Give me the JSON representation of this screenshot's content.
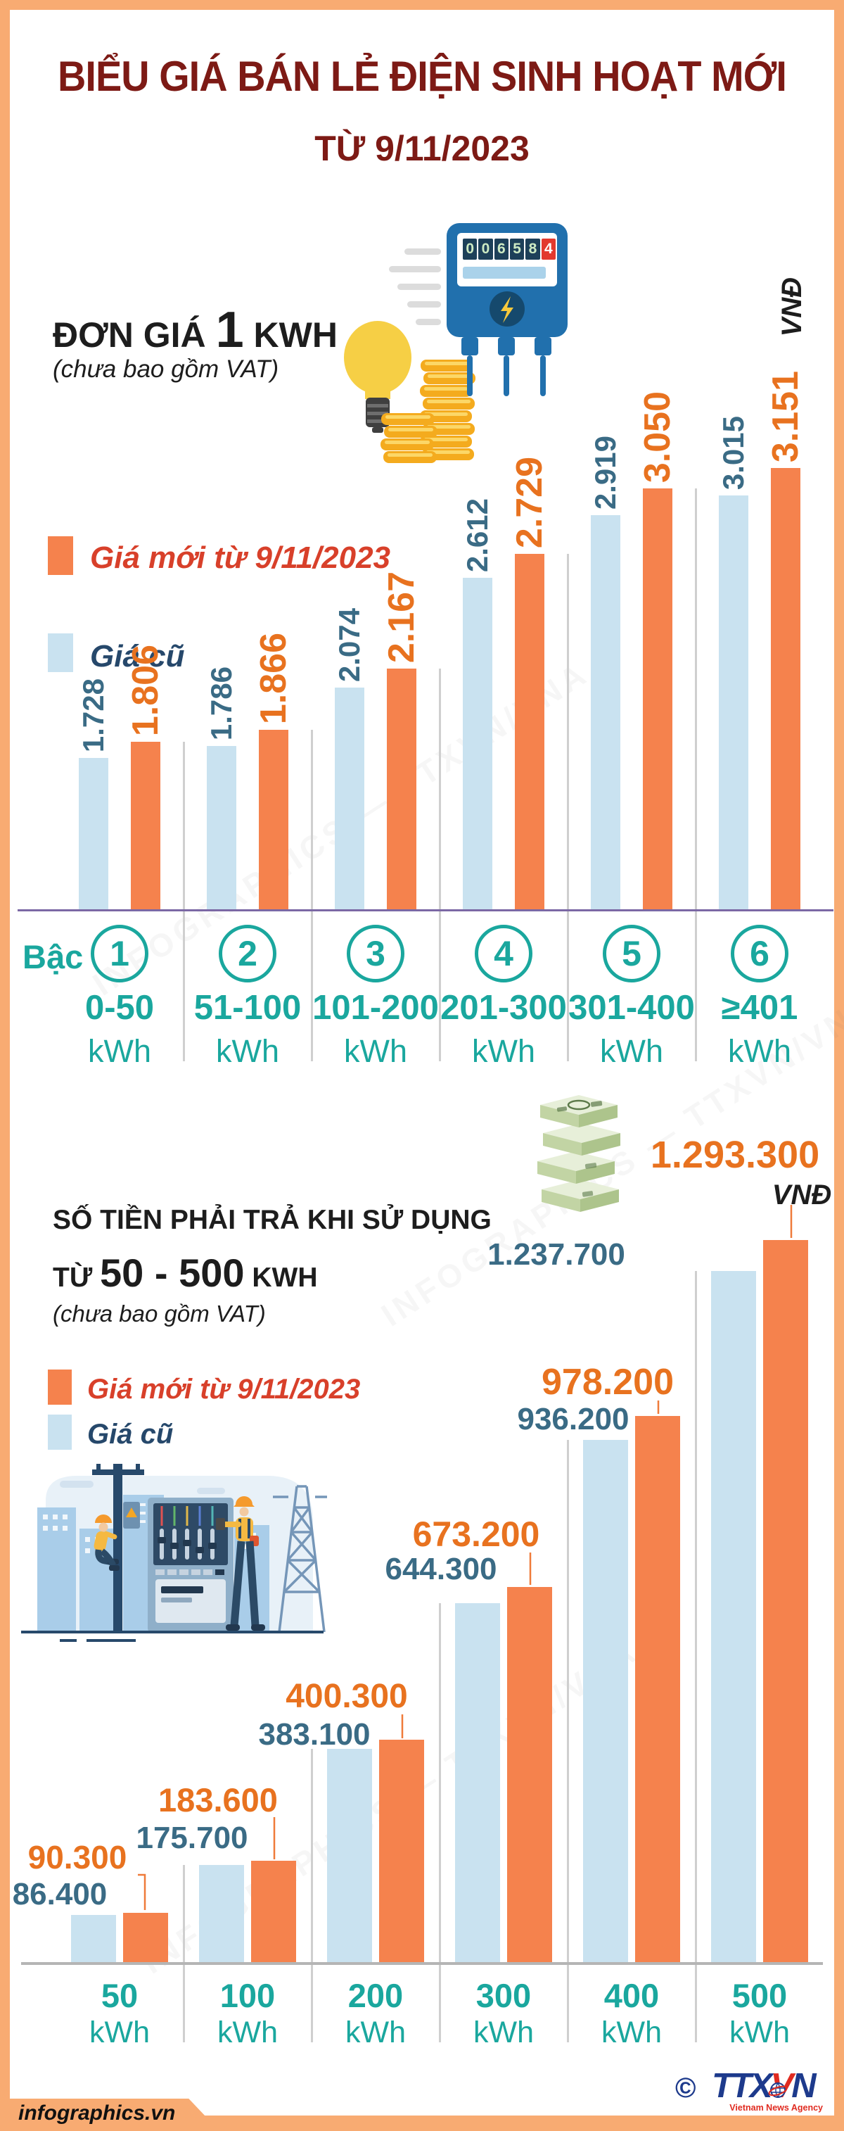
{
  "header": {
    "title": "BIỂU GIÁ BÁN LẺ ĐIỆN SINH HOẠT MỚI",
    "subtitle": "TỪ 9/11/2023"
  },
  "colors": {
    "frame": "#f8ab72",
    "maroon": "#7d1a15",
    "teal": "#1aa79e",
    "bar_new": "#f5824d",
    "bar_old": "#c9e2f0",
    "text_new": "#e8721f",
    "text_old": "#3a6b85",
    "legend_new": "#d8402a",
    "legend_old": "#26486b",
    "baseline1": "#7b68a5",
    "baseline2": "#b5b5b5",
    "divider": "#cfcfcf",
    "logo_blue": "#1d3a8c",
    "logo_red": "#e02b20"
  },
  "legend": {
    "new": "Giá mới từ 9/11/2023",
    "old": "Giá cũ"
  },
  "section1": {
    "heading_pre": "ĐƠN GIÁ",
    "heading_num": "1",
    "heading_post": "KWH",
    "note": "(chưa bao gồm VAT)",
    "unit": "VNĐ",
    "meter_digits": "006584"
  },
  "section2": {
    "line1": "SỐ TIỀN PHẢI TRẢ KHI SỬ DỤNG",
    "line2_pre": "TỪ",
    "line2_num": "50 - 500",
    "line2_post": "KWH",
    "note": "(chưa bao gồm VAT)",
    "unit": "VNĐ",
    "highlight_value": "1.293.300"
  },
  "tier_row": {
    "label": "Bậc",
    "numbers": [
      "1",
      "2",
      "3",
      "4",
      "5",
      "6"
    ],
    "ranges": [
      "0-50",
      "51-100",
      "101-200",
      "201-300",
      "301-400",
      "≥401"
    ],
    "unit": "kWh"
  },
  "watermark": "INFOGRAPHICS — TTXVN/VNA",
  "footer": {
    "site": "infographics.vn",
    "copyright": "©",
    "logo_part1": "TTX",
    "logo_part2": "V",
    "logo_part3": "N",
    "agency_name": "Vietnam News Agency"
  },
  "chart_data": [
    {
      "type": "bar",
      "title": "ĐƠN GIÁ 1 KWH (chưa bao gồm VAT)",
      "ylabel": "VNĐ",
      "legend_position": "top-left",
      "grid": false,
      "axis_note": "bar heights truncated (non-zero origin)",
      "categories": [
        "Bậc 1: 0-50 kWh",
        "Bậc 2: 51-100 kWh",
        "Bậc 3: 101-200 kWh",
        "Bậc 4: 201-300 kWh",
        "Bậc 5: 301-400 kWh",
        "Bậc 6: ≥401 kWh"
      ],
      "series": [
        {
          "name": "Giá cũ",
          "values": [
            1728,
            1786,
            2074,
            2612,
            2919,
            3015
          ],
          "labels": [
            "1.728",
            "1.786",
            "2.074",
            "2.612",
            "2.919",
            "3.015"
          ]
        },
        {
          "name": "Giá mới từ 9/11/2023",
          "values": [
            1806,
            1866,
            2167,
            2729,
            3050,
            3151
          ],
          "labels": [
            "1.806",
            "1.866",
            "2.167",
            "2.729",
            "3.050",
            "3.151"
          ]
        }
      ]
    },
    {
      "type": "bar",
      "title": "SỐ TIỀN PHẢI TRẢ KHI SỬ DỤNG TỪ 50 - 500 KWH (chưa bao gồm VAT)",
      "ylabel": "VNĐ",
      "legend_position": "top-left",
      "grid": false,
      "ylim": [
        0,
        1293300
      ],
      "categories": [
        "50 kWh",
        "100 kWh",
        "200 kWh",
        "300 kWh",
        "400 kWh",
        "500 kWh"
      ],
      "x_numbers": [
        "50",
        "100",
        "200",
        "300",
        "400",
        "500"
      ],
      "x_unit": "kWh",
      "series": [
        {
          "name": "Giá cũ",
          "values": [
            86400,
            175700,
            383100,
            644300,
            936200,
            1237700
          ],
          "labels": [
            "86.400",
            "175.700",
            "383.100",
            "644.300",
            "936.200",
            "1.237.700"
          ]
        },
        {
          "name": "Giá mới từ 9/11/2023",
          "values": [
            90300,
            183600,
            400300,
            673200,
            978200,
            1293300
          ],
          "labels": [
            "90.300",
            "183.600",
            "400.300",
            "673.200",
            "978.200",
            "1.293.300"
          ]
        }
      ]
    }
  ]
}
